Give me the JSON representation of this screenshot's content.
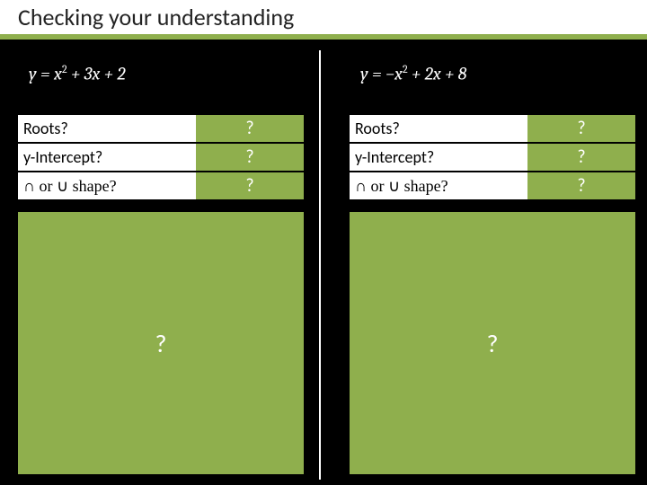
{
  "title": "Checking your understanding",
  "accent_color": "#8faf4d",
  "background_color": "#000000",
  "title_bg": "#ffffff",
  "left": {
    "equation_html": "y = x<sup>2</sup> + 3x + 2",
    "rows": [
      {
        "label": "Roots?",
        "answer": "?"
      },
      {
        "label": "y-Intercept?",
        "answer": "?"
      },
      {
        "label": "∩ or ∪ shape?",
        "answer": "?"
      }
    ],
    "big_answer": "?"
  },
  "right": {
    "equation_html": "y = −x<sup>2</sup> + 2x + 8",
    "rows": [
      {
        "label": "Roots?",
        "answer": "?"
      },
      {
        "label": "y-Intercept?",
        "answer": "?"
      },
      {
        "label": "∩ or ∪ shape?",
        "answer": "?"
      }
    ],
    "big_answer": "?"
  }
}
